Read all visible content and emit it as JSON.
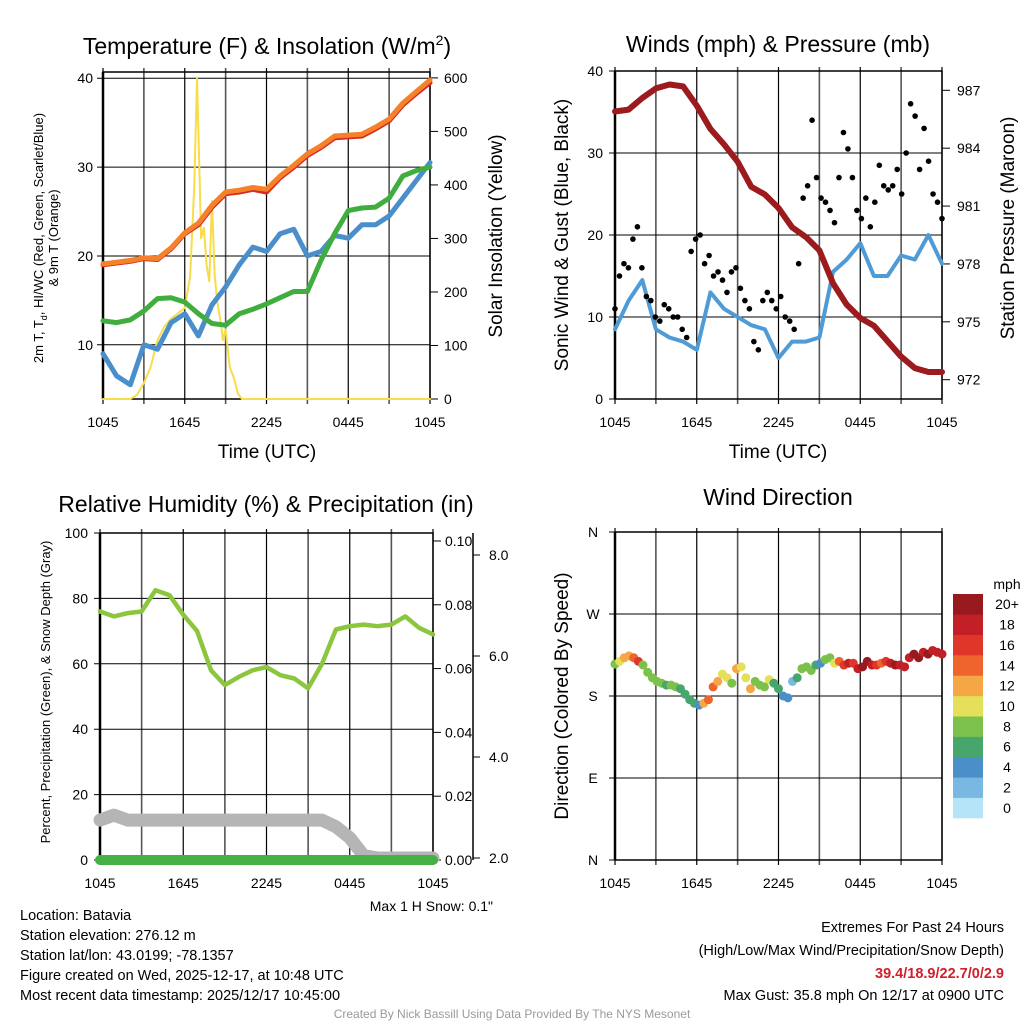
{
  "chart_data": [
    {
      "type": "line",
      "title": "Temperature (F) & Insolation (W/m",
      "title_sup": "2",
      "title_end": ")",
      "ylabel_line1_a": "2m T, T",
      "ylabel_line1_sub": "d",
      "ylabel_line1_b": ", HI/WC (Red, Green, Scarlet/Blue)",
      "ylabel_line2": "& 9m T (Orange)",
      "y2label": "Solar Insolation (Yellow)",
      "xlabel": "Time (UTC)",
      "xticks": [
        "1045",
        "1645",
        "2245",
        "0445",
        "1045"
      ],
      "yticks": [
        "10",
        "20",
        "30",
        "40"
      ],
      "y2ticks": [
        "0",
        "100",
        "200",
        "300",
        "400",
        "500",
        "600"
      ],
      "ylim": [
        3.9,
        40.7
      ],
      "y2lim": [
        0,
        611
      ],
      "x_hours": [
        0,
        1,
        2,
        3,
        4,
        5,
        6,
        7,
        8,
        9,
        10,
        11,
        12,
        13,
        14,
        15,
        16,
        17,
        18,
        19,
        20,
        21,
        22,
        23,
        24
      ],
      "series": [
        {
          "name": "2m Temperature",
          "color": "#d62a24",
          "axis": "left",
          "values": [
            19,
            19.2,
            19.4,
            19.7,
            19.6,
            20.8,
            22.5,
            23.5,
            25.5,
            27,
            27.2,
            27.5,
            27.2,
            28.8,
            30,
            31.3,
            32.2,
            33.3,
            33.4,
            33.5,
            34.3,
            35.2,
            37,
            38.3,
            39.5
          ]
        },
        {
          "name": "9m Temperature",
          "color": "#f5822a",
          "axis": "left",
          "values": [
            19.1,
            19.3,
            19.5,
            19.8,
            19.7,
            20.9,
            22.6,
            23.7,
            25.7,
            27.2,
            27.4,
            27.7,
            27.5,
            29,
            30.2,
            31.5,
            32.4,
            33.5,
            33.6,
            33.7,
            34.5,
            35.4,
            37.2,
            38.5,
            39.8
          ]
        },
        {
          "name": "Dewpoint",
          "color": "#3fae3f",
          "axis": "left",
          "values": [
            12.7,
            12.5,
            12.8,
            13.8,
            15.2,
            15.3,
            14.8,
            13.5,
            12.4,
            12.2,
            13.5,
            14,
            14.6,
            15.3,
            16,
            16,
            19.5,
            22.5,
            25.1,
            25.4,
            25.5,
            26.5,
            29,
            29.6,
            30
          ]
        },
        {
          "name": "Wind Chill",
          "color": "#4a8fcb",
          "axis": "left",
          "values": [
            9,
            6.5,
            5.5,
            10,
            9.5,
            12.5,
            13.5,
            11,
            14.5,
            16.5,
            19,
            21,
            20.5,
            22.5,
            23,
            20,
            20.5,
            22.3,
            22,
            23.5,
            23.5,
            24.5,
            26.5,
            28.5,
            30.5
          ]
        },
        {
          "name": "Solar Insolation",
          "color": "#f8dc4a",
          "axis": "right",
          "x": [
            0,
            1,
            2,
            2.5,
            3,
            3.5,
            4,
            4.5,
            5,
            5.5,
            6,
            6.4,
            6.7,
            6.9,
            7.05,
            7.2,
            7.4,
            7.6,
            7.8,
            8,
            8.2,
            8.4,
            8.6,
            8.8,
            9,
            9.3,
            9.6,
            9.9,
            10.2,
            24
          ],
          "values": [
            0,
            0,
            0,
            8,
            30,
            60,
            110,
            135,
            150,
            160,
            170,
            230,
            400,
            600,
            450,
            300,
            320,
            250,
            220,
            370,
            230,
            180,
            150,
            110,
            130,
            60,
            40,
            10,
            0,
            0
          ]
        }
      ]
    },
    {
      "type": "line",
      "title": "Winds (mph) & Pressure (mb)",
      "ylabel": "Sonic Wind & Gust (Blue, Black)",
      "y2label": "Station Pressure (Maroon)",
      "xlabel": "Time (UTC)",
      "xticks": [
        "1045",
        "1645",
        "2245",
        "0445",
        "1045"
      ],
      "yticks": [
        "0",
        "10",
        "20",
        "30",
        "40"
      ],
      "y2ticks": [
        "972",
        "975",
        "978",
        "981",
        "984",
        "987"
      ],
      "ylim": [
        0,
        40
      ],
      "y2lim": [
        971.0,
        988.0
      ],
      "series": [
        {
          "name": "Sonic Wind",
          "color": "#4f9bd6",
          "axis": "left",
          "values": [
            8.5,
            12,
            14.5,
            8.5,
            7.5,
            7,
            6,
            13,
            11,
            10,
            9,
            8.5,
            5,
            7,
            7,
            7.5,
            15.5,
            17,
            19,
            15,
            15,
            17.5,
            17,
            20,
            16.5
          ]
        },
        {
          "name": "Station Pressure",
          "color": "#9b1b1e",
          "axis": "right",
          "values": [
            985.9,
            986.0,
            986.6,
            987.1,
            987.3,
            987.2,
            986.2,
            985.0,
            984.2,
            983.3,
            982.0,
            981.6,
            980.9,
            979.9,
            979.4,
            978.7,
            977.0,
            975.9,
            975.2,
            974.8,
            974.0,
            973.2,
            972.6,
            972.4,
            972.4
          ]
        },
        {
          "name": "Gust",
          "color": "#000000",
          "axis": "left",
          "style": "dots",
          "values": [
            11,
            15,
            16.5,
            16,
            19.5,
            21,
            16,
            12.5,
            12,
            10,
            9.5,
            11.5,
            11,
            10,
            10,
            8.5,
            7.5,
            18,
            19.5,
            20,
            16.5,
            17.5,
            15,
            15.5,
            14.5,
            13,
            15.5,
            16,
            13.5,
            12,
            11,
            7,
            6,
            12,
            13,
            12,
            11,
            12.5,
            10,
            9.5,
            8.5,
            16.5,
            24.5,
            26,
            34,
            27,
            24.5,
            24,
            23,
            21.5,
            27,
            32.5,
            30.5,
            27,
            23,
            22,
            24.5,
            21,
            24,
            28.5,
            26,
            25.5,
            26,
            28,
            25,
            30,
            36,
            34.5,
            28,
            33,
            29,
            25,
            24,
            22
          ]
        }
      ]
    },
    {
      "type": "line",
      "title": "Relative Humidity (%) & Precipitation (in)",
      "ylabel": "Percent, Precipitation (Green), & Snow Depth (Gray)",
      "xticks": [
        "1045",
        "1645",
        "2245",
        "0445",
        "1045"
      ],
      "yticks": [
        "0",
        "20",
        "40",
        "60",
        "80",
        "100"
      ],
      "y2ticks": [
        "0.00",
        "0.02",
        "0.04",
        "0.06",
        "0.08",
        "0.10"
      ],
      "y3ticks": [
        "2.0",
        "4.0",
        "6.0",
        "8.0"
      ],
      "ylim": [
        0,
        100
      ],
      "y2lim": [
        0,
        0.1025
      ],
      "y3lim": [
        2.0,
        8.0
      ],
      "annotation": "Max 1 H Snow: 0.1\"",
      "series": [
        {
          "name": "Relative Humidity",
          "color": "#8cc63f",
          "axis": "left",
          "values": [
            76,
            74.5,
            75.5,
            76,
            82.5,
            81,
            75,
            70,
            58,
            53.5,
            56,
            58,
            59,
            56.5,
            55.5,
            52.5,
            60,
            70.5,
            71.5,
            72,
            71.5,
            72,
            74.5,
            71,
            69
          ]
        },
        {
          "name": "Snow Depth",
          "color": "#b5b5b5",
          "axis": "snow",
          "values": [
            2.75,
            2.85,
            2.75,
            2.75,
            2.75,
            2.75,
            2.75,
            2.75,
            2.75,
            2.75,
            2.75,
            2.75,
            2.75,
            2.75,
            2.75,
            2.75,
            2.75,
            2.62,
            2.4,
            2.05,
            2.0,
            2.0,
            2.0,
            2.0,
            2.0
          ]
        },
        {
          "name": "Precipitation",
          "color": "#45b145",
          "axis": "precip",
          "values": [
            0,
            0,
            0,
            0,
            0,
            0,
            0,
            0,
            0,
            0,
            0,
            0,
            0,
            0,
            0,
            0,
            0,
            0,
            0,
            0,
            0,
            0,
            0,
            0,
            0
          ]
        }
      ]
    },
    {
      "type": "scatter",
      "title": "Wind Direction",
      "ylabel": "Direction (Colored By Speed)",
      "xticks": [
        "1045",
        "1645",
        "2245",
        "0445",
        "1045"
      ],
      "yticks": [
        "N",
        "E",
        "S",
        "W",
        "N"
      ],
      "ylim": [
        0,
        360
      ],
      "colorbar_title": "mph",
      "colorbar_labels": [
        "0",
        "2",
        "4",
        "6",
        "8",
        "10",
        "12",
        "14",
        "16",
        "18",
        "20+"
      ],
      "colorbar_colors": [
        "#b5e3f8",
        "#7ab8e4",
        "#4a8fc8",
        "#47a66b",
        "#7cc24a",
        "#e5e05a",
        "#f5a746",
        "#ee642c",
        "#e0362a",
        "#c21f26",
        "#991a1e"
      ],
      "direction_deg": [
        215,
        218,
        222,
        224,
        222,
        218,
        214,
        206,
        200,
        196,
        194,
        192,
        192,
        190,
        188,
        182,
        176,
        172,
        170,
        172,
        176,
        190,
        196,
        204,
        200,
        194,
        210,
        212,
        200,
        188,
        196,
        192,
        190,
        198,
        194,
        188,
        180,
        178,
        196,
        200,
        210,
        212,
        208,
        214,
        216,
        220,
        222,
        216,
        218,
        214,
        216,
        216,
        210,
        212,
        218,
        214,
        214,
        216,
        218,
        216,
        214,
        214,
        212,
        222,
        226,
        222,
        228,
        226,
        230,
        228,
        226
      ],
      "speed_mph": [
        9,
        10,
        12,
        13,
        15,
        16,
        9,
        8,
        8,
        8,
        8,
        7,
        8,
        8,
        7,
        6,
        6,
        6,
        5,
        13,
        15,
        14,
        12,
        11,
        10,
        9,
        12,
        10,
        10,
        12,
        9,
        8,
        8,
        10,
        7,
        6,
        4,
        4,
        3,
        7,
        8,
        8,
        9,
        7,
        5,
        8,
        9,
        11,
        15,
        17,
        18,
        17,
        19,
        20,
        21,
        18,
        16,
        15,
        17,
        19,
        20,
        18,
        18,
        19,
        21,
        20,
        19,
        21,
        19,
        18,
        18
      ]
    }
  ],
  "footer": {
    "location": "Location: Batavia",
    "elevation": "Station elevation: 276.12 m",
    "latlon": "Station lat/lon: 43.0199; -78.1357",
    "created": "Figure created on Wed, 2025-12-17, at 10:48 UTC",
    "recent": "Most recent data timestamp: 2025/12/17 10:45:00",
    "extremes_title": "Extremes For Past 24 Hours",
    "extremes_sub": "(High/Low/Max Wind/Precipitation/Snow Depth)",
    "extremes_values": "39.4/18.9/22.7/0/2.9",
    "max_gust": "Max Gust: 35.8 mph On 12/17 at 0900 UTC",
    "credit": "Created By Nick Bassill Using Data Provided By The NYS Mesonet",
    "extremes_color": "#d0202a"
  }
}
